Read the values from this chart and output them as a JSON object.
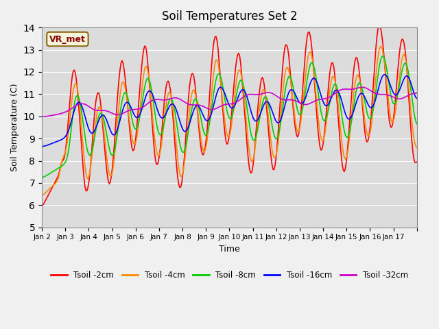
{
  "title": "Soil Temperatures Set 2",
  "xlabel": "Time",
  "ylabel": "Soil Temperature (C)",
  "ylim": [
    5.0,
    14.0
  ],
  "yticks": [
    5.0,
    6.0,
    7.0,
    8.0,
    9.0,
    10.0,
    11.0,
    12.0,
    13.0,
    14.0
  ],
  "xtick_labels": [
    "Jan 2",
    "Jan 3",
    "Jan 4",
    "Jan 5",
    "Jan 6",
    "Jan 7",
    "Jan 8",
    "Jan 9",
    "Jan 10",
    "Jan 11",
    "Jan 12",
    "Jan 13",
    "Jan 14",
    "Jan 15",
    "Jan 16",
    "Jan 17"
  ],
  "n_days": 16,
  "pts_per_day": 24,
  "colors": {
    "Tsoil -2cm": "#ff0000",
    "Tsoil -4cm": "#ff8800",
    "Tsoil -8cm": "#00cc00",
    "Tsoil -16cm": "#0000ff",
    "Tsoil -32cm": "#cc00cc"
  },
  "legend_label": "VR_met",
  "background_color": "#e8e8e8",
  "plot_bg": "#dcdcdc"
}
